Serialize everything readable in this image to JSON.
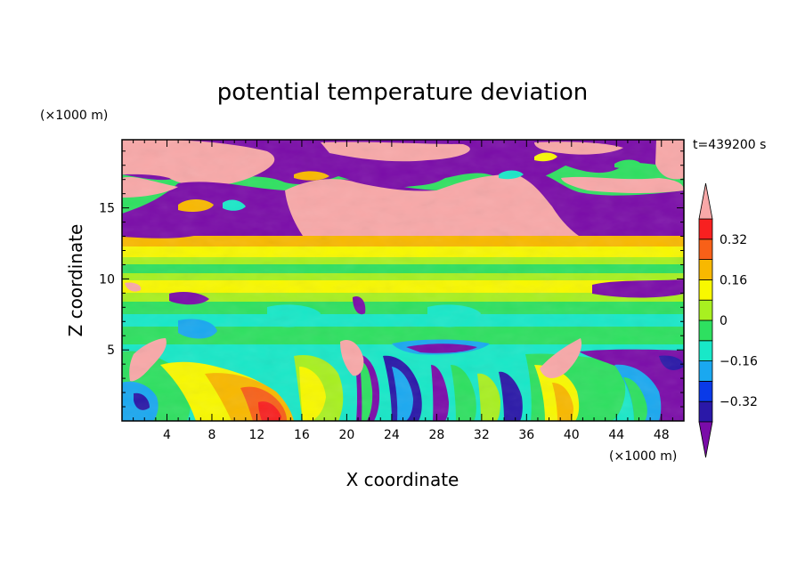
{
  "chart_data": {
    "type": "heatmap",
    "title": "potential temperature deviation",
    "xlabel": "X coordinate",
    "ylabel": "Z coordinate",
    "x_unit": "(×1000 m)",
    "y_unit": "(×1000 m)",
    "time_label": "t=439200 s",
    "xlim": [
      0,
      50
    ],
    "ylim": [
      0,
      19.8
    ],
    "x_ticks": [
      "4",
      "8",
      "12",
      "16",
      "20",
      "24",
      "28",
      "32",
      "36",
      "40",
      "44",
      "48"
    ],
    "y_ticks": [
      "5",
      "10",
      "15"
    ],
    "colorbar": {
      "levels": [
        -0.4,
        -0.32,
        -0.24,
        -0.16,
        -0.08,
        0,
        0.08,
        0.16,
        0.24,
        0.32,
        0.4
      ],
      "labels": [
        "0.32",
        "0.16",
        "0",
        "−0.16",
        "−0.32"
      ],
      "colors": [
        "#7a0ca8",
        "#2a18a8",
        "#0a3ae8",
        "#1aa8f0",
        "#18e8c8",
        "#2ee060",
        "#a8f020",
        "#f8f800",
        "#f8b800",
        "#f86018",
        "#f82020",
        "#f8a8a8"
      ]
    }
  }
}
